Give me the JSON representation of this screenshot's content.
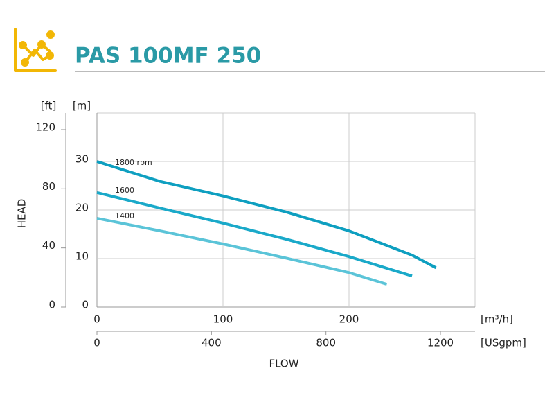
{
  "chart_data": {
    "type": "line",
    "title": "PAS 100MF 250",
    "x_label": "FLOW",
    "y_label": "HEAD",
    "x_unit": "[m³/h]",
    "x2_unit": "[USgpm]",
    "y_unit": "[m]",
    "y2_unit": "[ft]",
    "xlim": [
      0,
      300
    ],
    "xticks": [
      0,
      100,
      200
    ],
    "x2lim": [
      0,
      1320.9
    ],
    "x2ticks": [
      0,
      400,
      800,
      1200
    ],
    "ylim": [
      0,
      40
    ],
    "yticks": [
      0,
      10,
      20,
      30
    ],
    "y2lim": [
      0,
      131.23
    ],
    "y2ticks": [
      0,
      40,
      80,
      120
    ],
    "grid": true,
    "series": [
      {
        "name": "1800 rpm",
        "color": "#0e9fc0",
        "x": [
          0,
          50,
          100,
          150,
          200,
          250,
          269
        ],
        "values": [
          30,
          25.9,
          22.9,
          19.6,
          15.7,
          10.7,
          8.1
        ]
      },
      {
        "name": "1600",
        "color": "#1aa9c9",
        "x": [
          0,
          50,
          100,
          150,
          200,
          250
        ],
        "values": [
          23.6,
          20.4,
          17.3,
          14.0,
          10.4,
          6.4
        ]
      },
      {
        "name": "1400",
        "color": "#5bc4d8",
        "x": [
          0,
          50,
          100,
          150,
          200,
          230
        ],
        "values": [
          18.3,
          15.7,
          13.0,
          10.1,
          7.1,
          4.7
        ]
      }
    ]
  }
}
